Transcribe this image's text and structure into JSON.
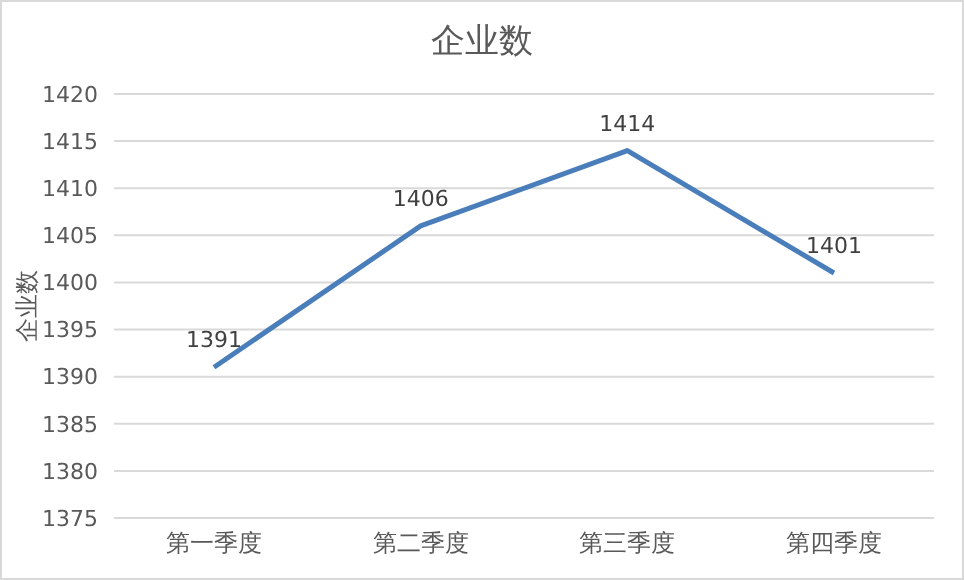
{
  "chart_data": {
    "type": "line",
    "title": "企业数",
    "ylabel": "企业数",
    "categories": [
      "第一季度",
      "第二季度",
      "第三季度",
      "第四季度"
    ],
    "series": [
      {
        "color": "#4a7ebb",
        "values": [
          1391,
          1406,
          1414,
          1401
        ]
      }
    ],
    "ylim": [
      1375,
      1420
    ],
    "yticks": [
      1375,
      1380,
      1385,
      1390,
      1395,
      1400,
      1405,
      1410,
      1415,
      1420
    ],
    "grid": "y",
    "data_labels": true,
    "marker": "none",
    "line_style": "solid",
    "legend": false
  }
}
